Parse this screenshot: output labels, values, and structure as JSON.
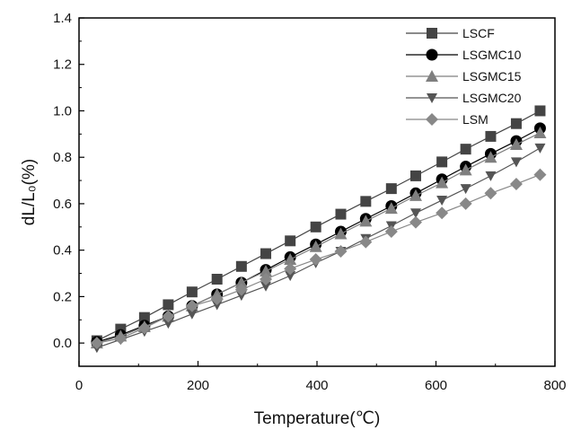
{
  "chart_data": {
    "type": "line",
    "title": "",
    "xlabel": "Temperature(℃)",
    "ylabel": "dL/L₀(%)",
    "xlim": [
      0,
      800
    ],
    "ylim": [
      -0.1,
      1.4
    ],
    "xticks": [
      "0",
      "200",
      "400",
      "600",
      "800"
    ],
    "yticks": [
      "0.0",
      "0.2",
      "0.4",
      "0.6",
      "0.8",
      "1.0",
      "1.2",
      "1.4"
    ],
    "grid": false,
    "legend_position": "top-right",
    "series": [
      {
        "name": "LSCF",
        "marker": "square",
        "color": "#444444",
        "x": [
          30,
          70,
          110,
          150,
          190,
          232,
          273,
          314,
          355,
          398,
          440,
          482,
          525,
          566,
          610,
          650,
          692,
          735,
          775
        ],
        "y": [
          0.01,
          0.06,
          0.11,
          0.165,
          0.22,
          0.275,
          0.33,
          0.385,
          0.44,
          0.5,
          0.555,
          0.61,
          0.665,
          0.72,
          0.78,
          0.835,
          0.89,
          0.945,
          1.0
        ]
      },
      {
        "name": "LSGMC10",
        "marker": "circle",
        "color": "#000000",
        "x": [
          30,
          70,
          110,
          150,
          190,
          232,
          273,
          314,
          355,
          398,
          440,
          482,
          525,
          566,
          610,
          650,
          692,
          735,
          775
        ],
        "y": [
          0.005,
          0.035,
          0.075,
          0.115,
          0.16,
          0.21,
          0.26,
          0.315,
          0.37,
          0.425,
          0.48,
          0.535,
          0.59,
          0.645,
          0.705,
          0.76,
          0.815,
          0.87,
          0.925
        ]
      },
      {
        "name": "LSGMC15",
        "marker": "triangle-up",
        "color": "#7f7f7f",
        "x": [
          30,
          70,
          110,
          150,
          190,
          232,
          273,
          314,
          355,
          398,
          440,
          482,
          525,
          566,
          610,
          650,
          692,
          735,
          775
        ],
        "y": [
          0.0,
          0.03,
          0.07,
          0.115,
          0.16,
          0.21,
          0.26,
          0.31,
          0.36,
          0.415,
          0.47,
          0.525,
          0.58,
          0.635,
          0.69,
          0.745,
          0.8,
          0.855,
          0.905
        ]
      },
      {
        "name": "LSGMC20",
        "marker": "triangle-down",
        "color": "#555555",
        "x": [
          30,
          70,
          110,
          150,
          190,
          232,
          273,
          314,
          355,
          398,
          440,
          482,
          525,
          566,
          610,
          650,
          692,
          735,
          775
        ],
        "y": [
          -0.02,
          0.015,
          0.05,
          0.085,
          0.125,
          0.165,
          0.205,
          0.245,
          0.29,
          0.345,
          0.395,
          0.45,
          0.505,
          0.56,
          0.615,
          0.665,
          0.72,
          0.78,
          0.84
        ]
      },
      {
        "name": "LSM",
        "marker": "diamond",
        "color": "#888888",
        "x": [
          30,
          70,
          110,
          150,
          190,
          232,
          273,
          314,
          355,
          398,
          440,
          482,
          525,
          566,
          610,
          650,
          692,
          735,
          775
        ],
        "y": [
          0.0,
          0.02,
          0.065,
          0.115,
          0.16,
          0.19,
          0.23,
          0.275,
          0.32,
          0.36,
          0.395,
          0.435,
          0.48,
          0.52,
          0.56,
          0.6,
          0.645,
          0.685,
          0.725
        ]
      }
    ]
  }
}
